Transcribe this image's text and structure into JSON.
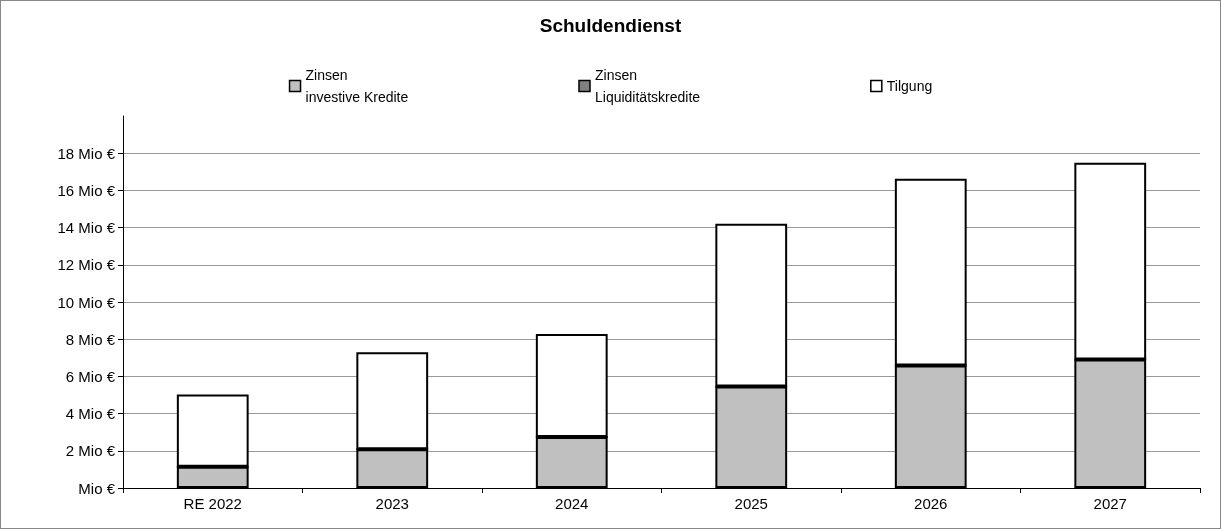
{
  "chart_data": {
    "type": "bar",
    "title": "Schuldendienst",
    "stacked": true,
    "categories": [
      "RE 2022",
      "2023",
      "2024",
      "2025",
      "2026",
      "2027"
    ],
    "series": [
      {
        "name": "Zinsen\ninvestive Kredite",
        "color": "#c0c0c0",
        "values": [
          1.14,
          2.09,
          2.74,
          5.46,
          6.59,
          6.91
        ]
      },
      {
        "name": "Zinsen\nLiquiditätskredite",
        "color": "#808080",
        "values": [
          0,
          0,
          0,
          0,
          0,
          0
        ]
      },
      {
        "name": "Tilgung",
        "color": "#ffffff",
        "values": [
          3.89,
          5.21,
          5.54,
          8.75,
          10.03,
          10.58
        ]
      }
    ],
    "ylim": [
      0,
      20
    ],
    "yticks": [
      {
        "value": 0,
        "label": "Mio €"
      },
      {
        "value": 2,
        "label": "2 Mio €"
      },
      {
        "value": 4,
        "label": "4 Mio €"
      },
      {
        "value": 6,
        "label": "6 Mio €"
      },
      {
        "value": 8,
        "label": "8 Mio €"
      },
      {
        "value": 10,
        "label": "10 Mio €"
      },
      {
        "value": 12,
        "label": "12 Mio €"
      },
      {
        "value": 14,
        "label": "14 Mio €"
      },
      {
        "value": 16,
        "label": "16 Mio €"
      },
      {
        "value": 18,
        "label": "18 Mio €"
      }
    ],
    "grid": "y",
    "legend": "top"
  }
}
